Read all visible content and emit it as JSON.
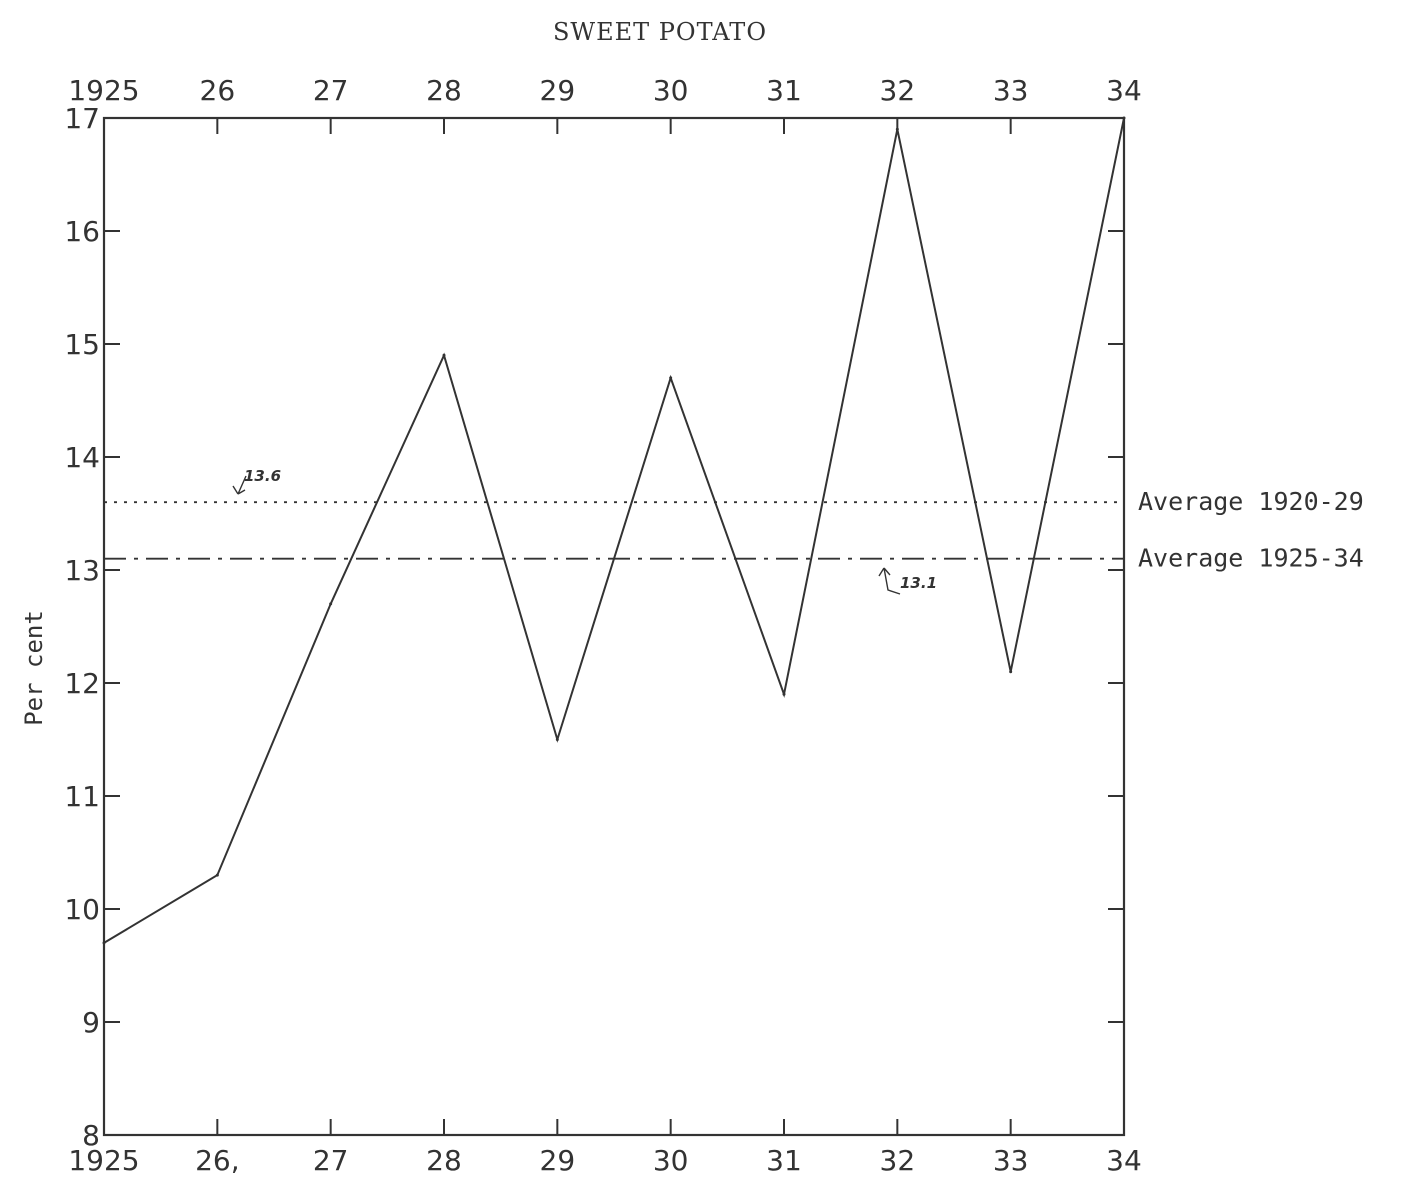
{
  "chart_data": {
    "type": "line",
    "title": "SWEET POTATO",
    "ylabel": "Per cent",
    "xlabel": "",
    "x": [
      1925,
      1926,
      1927,
      1928,
      1929,
      1930,
      1931,
      1932,
      1933,
      1934
    ],
    "x_tick_labels_top": [
      "1925",
      "26",
      "27",
      "28",
      "29",
      "30",
      "31",
      "32",
      "33",
      "34"
    ],
    "x_tick_labels_bottom": [
      "1925",
      "26,",
      "27",
      "28",
      "29",
      "30",
      "31",
      "32",
      "33",
      "34"
    ],
    "ylim": [
      8,
      17
    ],
    "y_ticks": [
      8,
      9,
      10,
      11,
      12,
      13,
      14,
      15,
      16,
      17
    ],
    "series": [
      {
        "values": [
          9.7,
          10.3,
          12.7,
          14.9,
          11.5,
          14.7,
          11.9,
          16.9,
          12.1,
          17.0
        ]
      }
    ],
    "reference_lines": [
      {
        "name": "Average 1920-29",
        "value": 13.6,
        "style": "dotted",
        "annotation": "13.6"
      },
      {
        "name": "Average 1925-34",
        "value": 13.1,
        "style": "dash-dot",
        "annotation": "13.1"
      }
    ],
    "grid": false,
    "colors": {
      "ink": "#333333",
      "background": "#ffffff"
    }
  }
}
